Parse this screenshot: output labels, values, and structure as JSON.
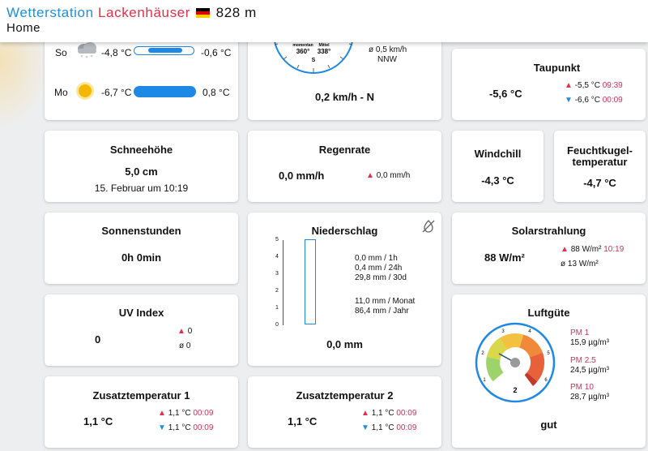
{
  "header": {
    "title_station": "Wetterstation",
    "title_name": "Lackenhäuser",
    "title_altitude": "828 m",
    "subtitle": "Home"
  },
  "forecast": [
    {
      "day": "So",
      "icon": "cloudy-snow-icon",
      "min": "-4,8 °C",
      "max": "-0,6 °C"
    },
    {
      "day": "Mo",
      "icon": "sun-icon",
      "min": "-6,7 °C",
      "max": "0,8 °C"
    }
  ],
  "wind": {
    "compass_left_label": "momentan",
    "compass_left_value": "360°",
    "compass_right_label": "Mittel",
    "compass_right_value": "338°",
    "compass_s": "S",
    "avg": "ø 0,5 km/h",
    "avg_dir": "NNW",
    "value": "0,2 km/h - N"
  },
  "taupunkt": {
    "title": "Taupunkt",
    "value": "-5,6 °C",
    "max": "-5,5 °C",
    "max_time": "09:39",
    "min": "-6,6 °C",
    "min_time": "00:09"
  },
  "schnee": {
    "title": "Schneehöhe",
    "value": "5,0 cm",
    "date": "15. Februar um 10:19"
  },
  "regenrate": {
    "title": "Regenrate",
    "value": "0,0 mm/h",
    "max": "0,0 mm/h"
  },
  "windchill": {
    "title": "Windchill",
    "value": "-4,3 °C"
  },
  "feucht": {
    "title_line1": "Feuchtkugel-",
    "title_line2": "temperatur",
    "value": "-4,7 °C"
  },
  "sonne": {
    "title": "Sonnenstunden",
    "value": "0h 0min"
  },
  "nieder": {
    "title": "Niederschlag",
    "icon": "no-snow-icon",
    "axis": [
      "5",
      "4",
      "3",
      "2",
      "1",
      "0"
    ],
    "line1": "0,0 mm / 1h",
    "line2": "0,4 mm / 24h",
    "line3": "29,8 mm / 30d",
    "line4": "11,0 mm / Monat",
    "line5": "86,4 mm / Jahr",
    "value": "0,0 mm",
    "level": 0
  },
  "solar": {
    "title": "Solarstrahlung",
    "value": "88 W/m²",
    "max": "88 W/m²",
    "max_time": "10:19",
    "avg": "ø 13 W/m²"
  },
  "uv": {
    "title": "UV Index",
    "value": "0",
    "max": "0",
    "avg": "ø 0"
  },
  "luft": {
    "title": "Luftgüte",
    "gauge_labels": [
      "1",
      "2",
      "3",
      "4",
      "5",
      "6"
    ],
    "gauge_value": "2",
    "pm1_label": "PM 1",
    "pm1": "15,9 µg/m³",
    "pm25_label": "PM 2.5",
    "pm25": "24,5 µg/m³",
    "pm10_label": "PM 10",
    "pm10": "28,7 µg/m³",
    "status": "gut"
  },
  "zusatz1": {
    "title": "Zusatztemperatur 1",
    "value": "1,1 °C",
    "max": "1,1 °C",
    "max_time": "00:09",
    "min": "1,1 °C",
    "min_time": "00:09"
  },
  "zusatz2": {
    "title": "Zusatztemperatur 2",
    "value": "1,1 °C",
    "max": "1,1 °C",
    "max_time": "00:09",
    "min": "1,1 °C",
    "min_time": "00:09"
  },
  "colors": {
    "accent_blue": "#1d8fe1",
    "accent_red": "#e0314b",
    "time_pink": "#c9325c",
    "bar_blue": "#1e88e5"
  }
}
